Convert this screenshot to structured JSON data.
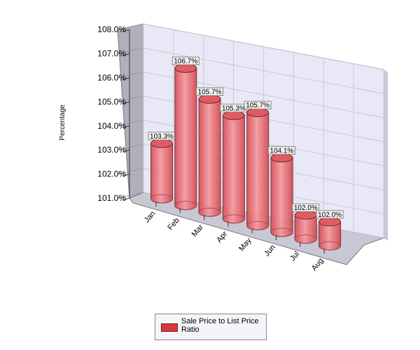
{
  "chart_data": {
    "type": "bar",
    "style": "3d-cylinder",
    "categories": [
      "Jan",
      "Feb",
      "Mar",
      "Apr",
      "May",
      "Jun",
      "Jul",
      "Aug"
    ],
    "series": [
      {
        "name": "Sale Price to List Price Ratio",
        "values": [
          103.3,
          106.7,
          105.7,
          105.3,
          105.7,
          104.1,
          102.0,
          102.0
        ]
      }
    ],
    "data_labels": [
      "103.3%",
      "106.7%",
      "105.7%",
      "105.3%",
      "105.7%",
      "104.1%",
      "102.0%",
      "102.0%"
    ],
    "ylabel": "Percentage",
    "xlabel": "",
    "ylim": [
      101.0,
      108.0
    ],
    "yticks": [
      "101.0%",
      "102.0%",
      "103.0%",
      "104.0%",
      "105.0%",
      "106.0%",
      "107.0%",
      "108.0%"
    ],
    "grid": true,
    "legend": "bottom",
    "colors": {
      "bar": "#e8666c",
      "bar_edge": "#6a2a2a",
      "wall": "#e8e8f6",
      "side_wall": "#b0b0bc",
      "floor": "#c8c8d4"
    }
  }
}
